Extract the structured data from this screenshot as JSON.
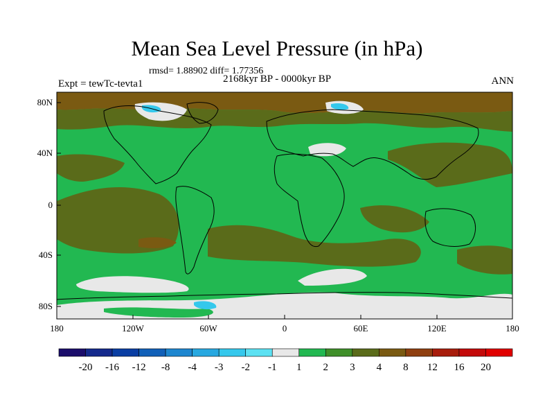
{
  "title": "Mean Sea Level Pressure (in hPa)",
  "stats_line": "rmsd= 1.88902 diff= 1.77356",
  "period": "2168kyr BP - 0000kyr BP",
  "experiment": "Expt = tewTc-tevta1",
  "season": "ANN",
  "map": {
    "lat_ticks": [
      "80N",
      "40N",
      "0",
      "40S",
      "80S"
    ],
    "lon_ticks": [
      "180",
      "120W",
      "60W",
      "0",
      "60E",
      "120E",
      "180"
    ]
  },
  "colorbar": {
    "labels": [
      "-20",
      "-16",
      "-12",
      "-8",
      "-4",
      "-3",
      "-2",
      "-1",
      "1",
      "2",
      "3",
      "4",
      "8",
      "12",
      "16",
      "20"
    ],
    "colors": [
      "#1b0d6b",
      "#142a8c",
      "#0a3ea3",
      "#1160b8",
      "#1d86cf",
      "#27a8e0",
      "#35c8ec",
      "#5ce1f2",
      "#e8e8e8",
      "#22b851",
      "#3f8f2a",
      "#5a6b1a",
      "#7a5a12",
      "#8f3f10",
      "#a81d0c",
      "#c30a0a",
      "#e00000"
    ]
  },
  "colors": {
    "land_outline": "#000000",
    "ocean_base": "#22b851",
    "olive": "#5a6b1a",
    "brown": "#7a5a12",
    "light": "#e8e8e8",
    "cyan": "#35c8ec"
  }
}
